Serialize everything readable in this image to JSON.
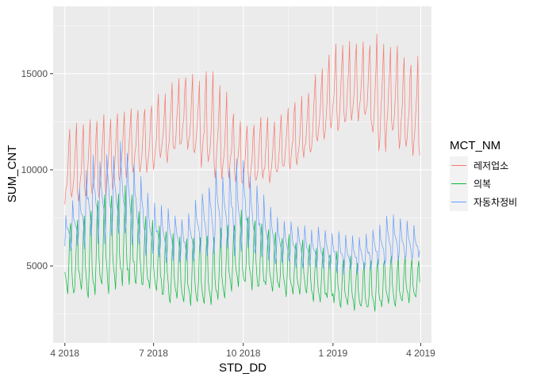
{
  "chart_data": {
    "type": "line",
    "xlabel": "STD_DD",
    "ylabel": "SUM_CNT",
    "legend_title": "MCT_NM",
    "legend_position": "right",
    "grid": true,
    "x_range": [
      "2018-03-20",
      "2019-04-12"
    ],
    "ylim": [
      1000,
      18500
    ],
    "x_ticks": [
      {
        "date": "2018-04-01",
        "label": "4 2018"
      },
      {
        "date": "2018-07-01",
        "label": "7 2018"
      },
      {
        "date": "2018-10-01",
        "label": "10 2018"
      },
      {
        "date": "2019-01-01",
        "label": "1 2019"
      },
      {
        "date": "2019-04-01",
        "label": "4 2019"
      }
    ],
    "y_ticks": [
      {
        "value": 5000,
        "label": "5000"
      },
      {
        "value": 10000,
        "label": "10000"
      },
      {
        "value": 15000,
        "label": "15000"
      }
    ],
    "series": [
      {
        "name": "레저업소",
        "color": "#F8766D",
        "x_start": "2018-04-01",
        "x_end": "2019-03-31",
        "weekly_pattern": [
          0.0,
          0.1,
          0.25,
          0.45,
          0.75,
          1.0,
          0.15
        ],
        "anchor_dates": [
          "2018-04-01",
          "2018-05-01",
          "2018-06-01",
          "2018-07-01",
          "2018-08-01",
          "2018-09-01",
          "2018-10-01",
          "2018-11-01",
          "2018-12-01",
          "2019-01-01",
          "2019-02-01",
          "2019-02-20",
          "2019-03-01",
          "2019-03-31"
        ],
        "low": [
          8400,
          8500,
          9700,
          10200,
          11200,
          9800,
          9200,
          9600,
          10600,
          12000,
          12800,
          11000,
          11800,
          10500
        ],
        "high": [
          12000,
          12600,
          13000,
          13500,
          15000,
          14800,
          12300,
          12700,
          13800,
          16200,
          16600,
          17000,
          16500,
          15500
        ],
        "min": 8200,
        "max": 17800
      },
      {
        "name": "의복",
        "color": "#00BA38",
        "x_start": "2018-04-01",
        "x_end": "2019-03-31",
        "weekly_pattern": [
          0.35,
          0.2,
          0.1,
          0.0,
          0.3,
          0.8,
          1.0
        ],
        "anchor_dates": [
          "2018-04-01",
          "2018-05-01",
          "2018-06-01",
          "2018-07-01",
          "2018-08-01",
          "2018-09-01",
          "2018-10-01",
          "2018-11-01",
          "2018-12-01",
          "2019-01-01",
          "2019-02-01",
          "2019-03-01",
          "2019-03-31"
        ],
        "low": [
          3400,
          3500,
          4300,
          3500,
          3000,
          3200,
          4000,
          3700,
          3500,
          3100,
          2700,
          3000,
          3300
        ],
        "high": [
          7200,
          8300,
          9000,
          7100,
          6400,
          6500,
          7700,
          6700,
          6300,
          5700,
          5100,
          5600,
          5300
        ],
        "min": 2000,
        "max": 9800
      },
      {
        "name": "자동차정비",
        "color": "#619CFF",
        "x_start": "2018-04-01",
        "x_end": "2019-03-31",
        "weekly_pattern": [
          0.2,
          1.0,
          0.7,
          0.55,
          0.45,
          0.35,
          0.0
        ],
        "anchor_dates": [
          "2018-04-01",
          "2018-05-01",
          "2018-06-01",
          "2018-07-01",
          "2018-08-01",
          "2018-09-01",
          "2018-10-01",
          "2018-11-01",
          "2018-12-01",
          "2019-01-01",
          "2019-02-01",
          "2019-03-01",
          "2019-03-31"
        ],
        "low": [
          5600,
          6400,
          6600,
          5400,
          5200,
          5900,
          5800,
          5200,
          5000,
          4700,
          4700,
          5100,
          5400
        ],
        "high": [
          7400,
          10600,
          11200,
          8300,
          7400,
          9700,
          10400,
          7600,
          7000,
          6800,
          6400,
          7600,
          7000
        ],
        "min": 4300,
        "max": 13000
      }
    ]
  }
}
